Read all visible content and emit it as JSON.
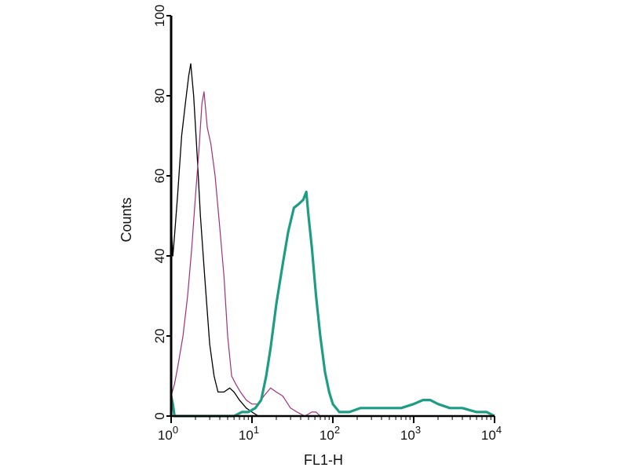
{
  "chart_data": {
    "type": "line",
    "title": "",
    "xlabel": "FL1-H",
    "ylabel": "Counts",
    "xscale": "log",
    "xlim": [
      1,
      10000
    ],
    "ylim": [
      0,
      100
    ],
    "grid": false,
    "x_ticks": [
      {
        "base": "10",
        "exp": "0",
        "value": 1
      },
      {
        "base": "10",
        "exp": "1",
        "value": 10
      },
      {
        "base": "10",
        "exp": "2",
        "value": 100
      },
      {
        "base": "10",
        "exp": "3",
        "value": 1000
      },
      {
        "base": "10",
        "exp": "4",
        "value": 10000
      }
    ],
    "y_ticks": [
      "0",
      "20",
      "40",
      "60",
      "80",
      "100"
    ],
    "series": [
      {
        "color": "#000000",
        "x": [
          1.0,
          1.02,
          1.05,
          1.1,
          1.2,
          1.35,
          1.5,
          1.65,
          1.75,
          1.9,
          2.1,
          2.3,
          2.6,
          3.0,
          3.4,
          3.8,
          4.5,
          5.3,
          6.0,
          7.0,
          8.5,
          10,
          12,
          14
        ],
        "y": [
          70,
          45,
          40,
          45,
          55,
          70,
          78,
          85,
          88,
          80,
          65,
          50,
          35,
          18,
          10,
          6,
          6,
          7,
          6,
          4,
          2,
          1,
          0,
          0
        ]
      },
      {
        "color": "#a0307a",
        "x": [
          1.0,
          1.1,
          1.2,
          1.4,
          1.6,
          1.8,
          2.0,
          2.2,
          2.4,
          2.55,
          2.8,
          3.1,
          3.5,
          4.0,
          4.5,
          5.0,
          5.6,
          6.3,
          7.2,
          8.5,
          10,
          12,
          14,
          17,
          20,
          24,
          30,
          36,
          45,
          55,
          62,
          70,
          100,
          1000,
          10000
        ],
        "y": [
          5,
          8,
          12,
          20,
          30,
          42,
          55,
          66,
          78,
          81,
          72,
          68,
          60,
          47,
          35,
          20,
          10,
          8,
          6,
          4,
          3,
          3,
          5,
          7,
          6,
          5,
          2,
          1,
          0,
          1,
          1,
          0,
          0,
          0,
          0
        ]
      },
      {
        "color": "#1f9c84",
        "x": [
          1.0,
          1.05,
          1.1,
          3,
          6,
          7.5,
          9,
          11,
          13,
          15,
          17,
          20,
          24,
          28,
          33,
          38,
          43,
          47,
          50,
          55,
          62,
          70,
          80,
          90,
          100,
          120,
          160,
          220,
          300,
          450,
          700,
          1000,
          1300,
          1600,
          2000,
          2800,
          4000,
          6000,
          8000,
          10000
        ],
        "y": [
          5,
          3,
          0,
          0,
          0,
          1,
          1,
          2,
          4,
          10,
          17,
          28,
          38,
          46,
          52,
          53,
          54,
          56,
          50,
          42,
          30,
          20,
          11,
          6,
          3,
          1,
          1,
          2,
          2,
          2,
          2,
          3,
          4,
          4,
          3,
          2,
          2,
          1,
          1,
          0
        ]
      }
    ]
  }
}
